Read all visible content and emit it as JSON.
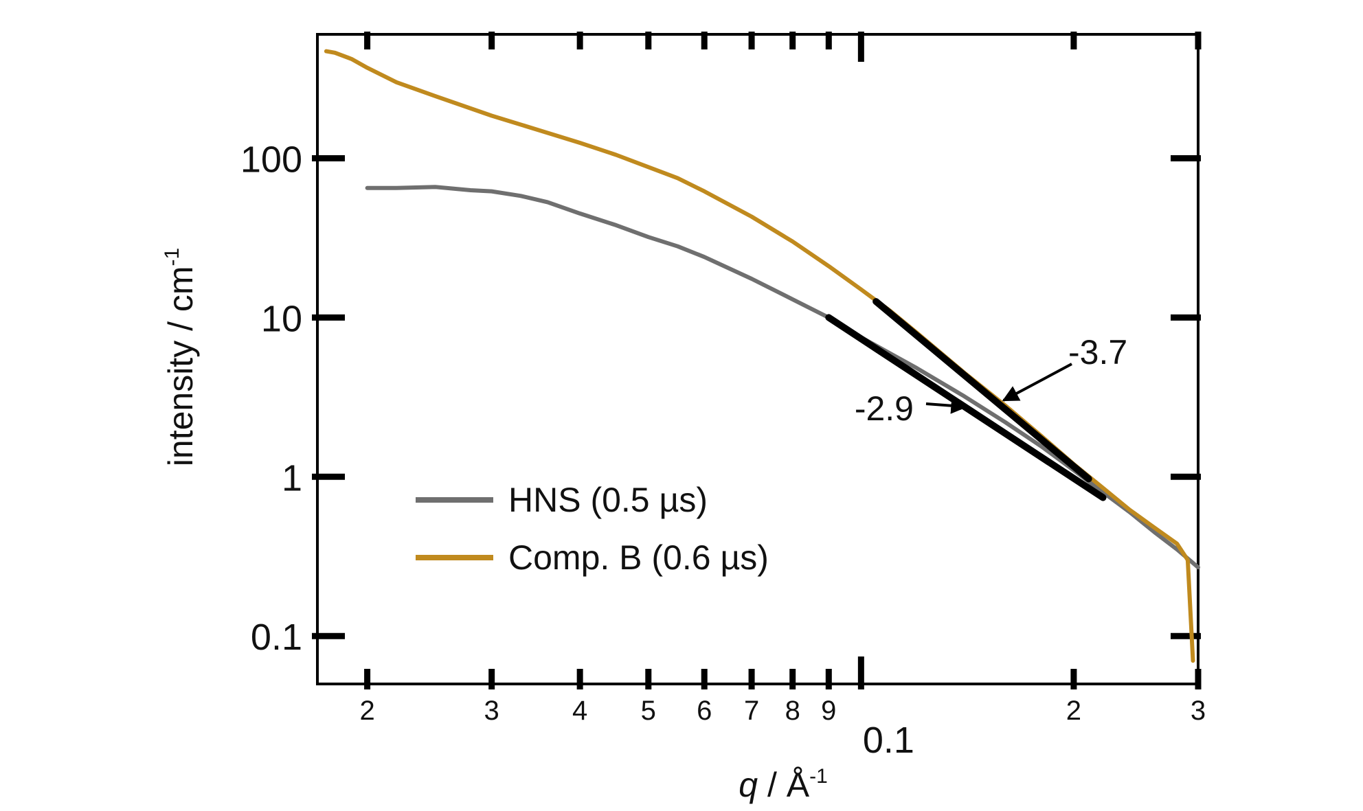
{
  "chart_data": {
    "type": "line",
    "x_scale": "log",
    "y_scale": "log",
    "xlim": [
      0.017,
      0.3
    ],
    "ylim": [
      0.05,
      600
    ],
    "xlabel_var": "q",
    "xlabel_unit": " / Å",
    "xlabel_exp": "-1",
    "ylabel": "intensity / cm",
    "ylabel_exp": "-1",
    "grid": false,
    "legend_position": "bottom-left",
    "x_major_ticks": [
      {
        "value": 0.1,
        "label": "0.1"
      }
    ],
    "x_minor_ticks": [
      {
        "value": 0.02,
        "label": "2"
      },
      {
        "value": 0.03,
        "label": "3"
      },
      {
        "value": 0.04,
        "label": "4"
      },
      {
        "value": 0.05,
        "label": "5"
      },
      {
        "value": 0.06,
        "label": "6"
      },
      {
        "value": 0.07,
        "label": "7"
      },
      {
        "value": 0.08,
        "label": "8"
      },
      {
        "value": 0.09,
        "label": "9"
      },
      {
        "value": 0.2,
        "label": "2"
      },
      {
        "value": 0.3,
        "label": "3"
      }
    ],
    "y_ticks": [
      {
        "value": 100,
        "label": "100"
      },
      {
        "value": 10,
        "label": "10"
      },
      {
        "value": 1,
        "label": "1"
      },
      {
        "value": 0.1,
        "label": "0.1"
      }
    ],
    "series": [
      {
        "name": "HNS (0.5 µs)",
        "color": "#6f6f6f",
        "x": [
          0.02,
          0.022,
          0.025,
          0.028,
          0.03,
          0.033,
          0.036,
          0.04,
          0.045,
          0.05,
          0.055,
          0.06,
          0.07,
          0.08,
          0.09,
          0.1,
          0.12,
          0.14,
          0.16,
          0.18,
          0.2,
          0.22,
          0.24,
          0.26,
          0.28,
          0.3
        ],
        "y": [
          65,
          65,
          66,
          63,
          62,
          58,
          53,
          45,
          38,
          32,
          28,
          24,
          17.5,
          13,
          10,
          7.5,
          4.8,
          3.2,
          2.2,
          1.55,
          1.1,
          0.8,
          0.6,
          0.45,
          0.35,
          0.27
        ]
      },
      {
        "name": "Comp. B (0.6 µs)",
        "color": "#c08a1e",
        "x": [
          0.0175,
          0.018,
          0.019,
          0.02,
          0.022,
          0.025,
          0.03,
          0.035,
          0.04,
          0.045,
          0.05,
          0.055,
          0.06,
          0.07,
          0.08,
          0.09,
          0.1,
          0.11,
          0.12,
          0.14,
          0.16,
          0.18,
          0.2,
          0.22,
          0.24,
          0.26,
          0.28,
          0.29,
          0.295
        ],
        "y": [
          470,
          460,
          420,
          370,
          300,
          245,
          185,
          150,
          125,
          105,
          88,
          75,
          62,
          43,
          30,
          21,
          15,
          11,
          8,
          4.5,
          2.8,
          1.8,
          1.2,
          0.85,
          0.62,
          0.48,
          0.38,
          0.3,
          0.07
        ]
      }
    ],
    "fits": [
      {
        "label": "-2.9",
        "slope": -2.9,
        "x_start": 0.09,
        "y_start": 10,
        "x_end": 0.22,
        "y_end": 0.74
      },
      {
        "label": "-3.7",
        "slope": -3.7,
        "x_start": 0.105,
        "y_start": 12.6,
        "x_end": 0.21,
        "y_end": 0.97
      }
    ],
    "annotations": [
      {
        "text": "-2.9",
        "arrow_to": [
          0.142,
          2.75
        ]
      },
      {
        "text": "-3.7",
        "arrow_to": [
          0.157,
          2.9
        ]
      }
    ]
  }
}
